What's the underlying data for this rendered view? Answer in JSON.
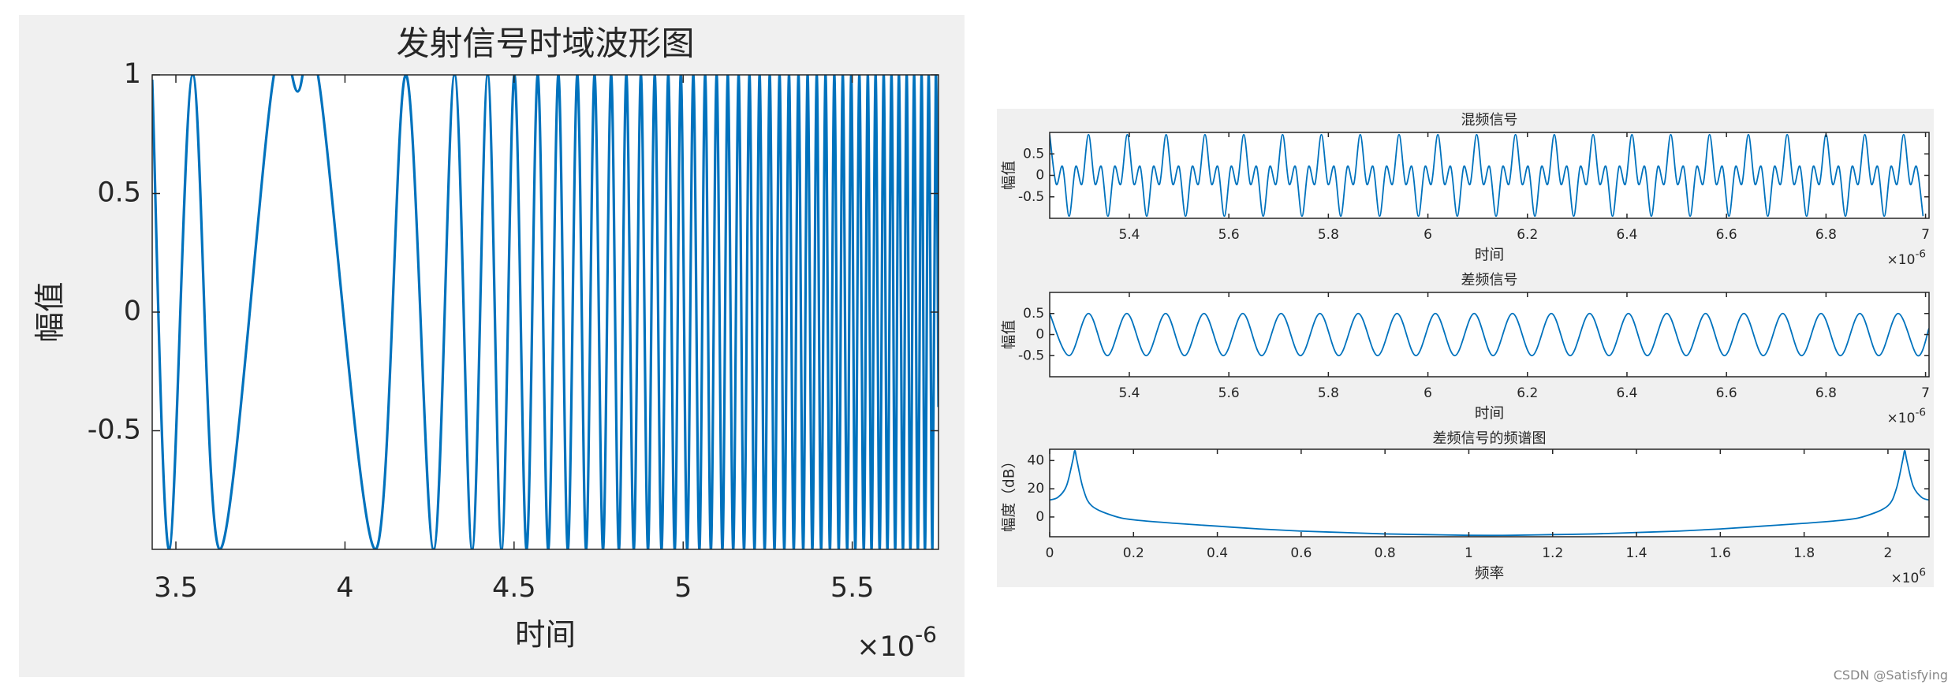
{
  "chart_data": [
    {
      "type": "line",
      "title": "发射信号时域波形图",
      "x_label": "时间",
      "y_label": "幅值",
      "x_multiplier": "×10",
      "x_multiplier_exponent": "-6",
      "color": "#0072bd",
      "xlim": [
        3.43,
        5.755
      ],
      "ylim": [
        -1,
        1
      ],
      "xticks": [
        3.5,
        4,
        4.5,
        5,
        5.5
      ],
      "yticks": [
        -0.5,
        0,
        0.5,
        1
      ],
      "x": [
        3.43,
        3.48,
        3.55,
        3.63,
        3.79,
        3.86,
        3.92,
        4.09,
        4.18,
        4.262,
        4.324,
        4.376,
        4.422,
        4.463,
        4.501,
        4.537,
        4.57,
        4.601,
        4.631,
        4.659,
        4.687,
        4.713,
        4.738,
        4.763,
        4.787,
        4.81,
        4.832,
        4.854,
        4.875,
        4.896,
        4.916,
        4.936,
        4.956,
        4.975,
        4.993,
        5.012,
        5.03,
        5.048,
        5.065,
        5.082,
        5.099,
        5.116,
        5.132,
        5.148,
        5.164,
        5.18,
        5.196,
        5.211,
        5.226,
        5.241,
        5.256,
        5.27,
        5.285,
        5.299,
        5.313,
        5.327,
        5.341,
        5.355,
        5.368,
        5.382,
        5.395,
        5.408,
        5.421,
        5.434,
        5.447,
        5.46,
        5.472,
        5.485,
        5.497,
        5.509,
        5.521,
        5.534,
        5.546,
        5.557,
        5.569,
        5.581,
        5.593,
        5.604,
        5.616,
        5.627,
        5.638,
        5.65,
        5.661,
        5.672,
        5.683,
        5.694,
        5.705,
        5.715,
        5.726,
        5.737,
        5.747,
        5.755
      ],
      "values": [
        0.98,
        -1,
        1,
        -1,
        1,
        0.93,
        1,
        -1,
        1,
        -1,
        1,
        -1,
        1,
        -1,
        1,
        -1,
        1,
        -1,
        1,
        -1,
        1,
        -1,
        1,
        -1,
        1,
        -1,
        1,
        -1,
        1,
        -1,
        1,
        -1,
        1,
        -1,
        1,
        -1,
        1,
        -1,
        1,
        -1,
        1,
        -1,
        1,
        -1,
        1,
        -1,
        1,
        -1,
        1,
        -1,
        1,
        -1,
        1,
        -1,
        1,
        -1,
        1,
        -1,
        1,
        -1,
        1,
        -1,
        1,
        -1,
        1,
        -1,
        1,
        -1,
        1,
        -1,
        1,
        -1,
        1,
        -1,
        1,
        -1,
        1,
        -1,
        1,
        -1,
        1,
        -1,
        1,
        -1,
        1,
        -1,
        1,
        -1,
        1,
        -1,
        1,
        -0.4
      ]
    },
    {
      "type": "line",
      "title": "混频信号",
      "x_label": "时间",
      "y_label": "幅值",
      "x_multiplier": "×10",
      "x_multiplier_exponent": "-6",
      "color": "#0072bd",
      "xlim": [
        5.24,
        7.007
      ],
      "ylim": [
        -1,
        1
      ],
      "xticks": [
        5.4,
        5.6,
        5.8,
        6,
        6.2,
        6.4,
        6.6,
        6.8,
        7
      ],
      "yticks": [
        -0.5,
        0,
        0.5
      ],
      "x": [
        5.24,
        5.253,
        5.266,
        5.279,
        5.292,
        5.305,
        5.318,
        5.331,
        5.344,
        5.357,
        5.37,
        5.383,
        5.396,
        5.409,
        5.422,
        5.435,
        5.448,
        5.461,
        5.474,
        5.487,
        5.5,
        5.513,
        5.526,
        5.539,
        5.552,
        5.565,
        5.578,
        5.591,
        5.604,
        5.617,
        5.63,
        5.643,
        5.656,
        5.669,
        5.682,
        5.695,
        5.708,
        5.721,
        5.734,
        5.747,
        5.76,
        5.773,
        5.786,
        5.799,
        5.812,
        5.825,
        5.838,
        5.851,
        5.864,
        5.877,
        5.89,
        5.903,
        5.916,
        5.929,
        5.942,
        5.955,
        5.968,
        5.981,
        5.994,
        6.007,
        6.02,
        6.033,
        6.046,
        6.059,
        6.072,
        6.085,
        6.098,
        6.111,
        6.124,
        6.137,
        6.15,
        6.163,
        6.176,
        6.189,
        6.202,
        6.215,
        6.228,
        6.241,
        6.254,
        6.267,
        6.28,
        6.293,
        6.306,
        6.319,
        6.332,
        6.345,
        6.358,
        6.371,
        6.384,
        6.397,
        6.41,
        6.423,
        6.436,
        6.449,
        6.462,
        6.475,
        6.488,
        6.501,
        6.514,
        6.527,
        6.54,
        6.553,
        6.566,
        6.579,
        6.592,
        6.605,
        6.618,
        6.631,
        6.644,
        6.657,
        6.67,
        6.683,
        6.696,
        6.709,
        6.722,
        6.735,
        6.748,
        6.761,
        6.774,
        6.787,
        6.8,
        6.813,
        6.826,
        6.839,
        6.852,
        6.865,
        6.878,
        6.891,
        6.904,
        6.917,
        6.93,
        6.943,
        6.956,
        6.969,
        6.982,
        6.995
      ],
      "values": [
        0.95,
        -0.2,
        0.2,
        -0.95,
        0.2,
        -0.2,
        0.95,
        -0.2,
        0.2,
        -0.95,
        0.2,
        -0.2,
        0.95,
        -0.2,
        0.2,
        -0.95,
        0.2,
        -0.2,
        0.95,
        -0.2,
        0.2,
        -0.95,
        0.2,
        -0.2,
        0.95,
        -0.2,
        0.2,
        -0.95,
        0.2,
        -0.2,
        0.95,
        -0.2,
        0.2,
        -0.95,
        0.2,
        -0.2,
        0.95,
        -0.2,
        0.2,
        -0.95,
        0.2,
        -0.2,
        0.95,
        -0.2,
        0.2,
        -0.95,
        0.2,
        -0.2,
        0.95,
        -0.2,
        0.2,
        -0.95,
        0.2,
        -0.2,
        0.95,
        -0.2,
        0.2,
        -0.95,
        0.2,
        -0.2,
        0.95,
        -0.2,
        0.2,
        -0.95,
        0.2,
        -0.2,
        0.95,
        -0.2,
        0.2,
        -0.95,
        0.2,
        -0.2,
        0.95,
        -0.2,
        0.2,
        -0.95,
        0.2,
        -0.2,
        0.95,
        -0.2,
        0.2,
        -0.95,
        0.2,
        -0.2,
        0.95,
        -0.2,
        0.2,
        -0.95,
        0.2,
        -0.2,
        0.95,
        -0.2,
        0.2,
        -0.95,
        0.2,
        -0.2,
        0.95,
        -0.2,
        0.2,
        -0.95,
        0.2,
        -0.2,
        0.95,
        -0.2,
        0.2,
        -0.95,
        0.2,
        -0.2,
        0.95,
        -0.2,
        0.2,
        -0.95,
        0.2,
        -0.2,
        0.95,
        -0.2,
        0.2,
        -0.95,
        0.2,
        -0.2,
        0.95,
        -0.2,
        0.2,
        -0.95,
        0.2,
        -0.2,
        0.95,
        -0.2,
        0.2,
        -0.95,
        0.2,
        -0.2,
        0.95,
        -0.2,
        0.2,
        -0.95
      ]
    },
    {
      "type": "line",
      "title": "差频信号",
      "x_label": "时间",
      "y_label": "幅值",
      "x_multiplier": "×10",
      "x_multiplier_exponent": "-6",
      "color": "#0072bd",
      "xlim": [
        5.24,
        7.007
      ],
      "ylim": [
        -1,
        1
      ],
      "xticks": [
        5.4,
        5.6,
        5.8,
        6,
        6.2,
        6.4,
        6.6,
        6.8,
        7
      ],
      "yticks": [
        -0.5,
        0,
        0.5
      ],
      "x": [
        5.24,
        5.279,
        5.318,
        5.356,
        5.395,
        5.434,
        5.473,
        5.511,
        5.55,
        5.589,
        5.628,
        5.666,
        5.705,
        5.744,
        5.783,
        5.821,
        5.86,
        5.899,
        5.938,
        5.976,
        6.015,
        6.054,
        6.093,
        6.131,
        6.17,
        6.209,
        6.248,
        6.286,
        6.325,
        6.364,
        6.403,
        6.441,
        6.48,
        6.519,
        6.558,
        6.596,
        6.635,
        6.674,
        6.713,
        6.751,
        6.79,
        6.829,
        6.868,
        6.906,
        6.945,
        6.984,
        7.007
      ],
      "values": [
        0.5,
        -0.5,
        0.5,
        -0.5,
        0.5,
        -0.5,
        0.5,
        -0.5,
        0.5,
        -0.5,
        0.5,
        -0.5,
        0.5,
        -0.5,
        0.5,
        -0.5,
        0.5,
        -0.5,
        0.5,
        -0.5,
        0.5,
        -0.5,
        0.5,
        -0.5,
        0.5,
        -0.5,
        0.5,
        -0.5,
        0.5,
        -0.5,
        0.5,
        -0.5,
        0.5,
        -0.5,
        0.5,
        -0.5,
        0.5,
        -0.5,
        0.5,
        -0.5,
        0.5,
        -0.5,
        0.5,
        -0.5,
        0.5,
        -0.5,
        0.15
      ]
    },
    {
      "type": "line",
      "title": "差频信号的频谱图",
      "x_label": "频率",
      "y_label": "幅度（dB）",
      "x_multiplier": "×10",
      "x_multiplier_exponent": "6",
      "color": "#0072bd",
      "xlim": [
        0,
        2.098
      ],
      "ylim": [
        -14,
        48
      ],
      "xticks": [
        0,
        0.2,
        0.4,
        0.6,
        0.8,
        1,
        1.2,
        1.4,
        1.6,
        1.8,
        2
      ],
      "yticks": [
        0,
        20,
        40
      ],
      "x": [
        0,
        0.02,
        0.04,
        0.055,
        0.06,
        0.065,
        0.08,
        0.1,
        0.15,
        0.2,
        0.3,
        0.4,
        0.5,
        0.6,
        0.7,
        0.8,
        0.9,
        1,
        1.1,
        1.2,
        1.3,
        1.4,
        1.5,
        1.6,
        1.7,
        1.8,
        1.9,
        1.95,
        2,
        2.02,
        2.035,
        2.04,
        2.045,
        2.06,
        2.08,
        2.098
      ],
      "values": [
        12,
        14,
        22,
        40,
        47,
        40,
        20,
        8,
        1,
        -2,
        -4.5,
        -6.5,
        -8.5,
        -10,
        -11,
        -12,
        -12.5,
        -13,
        -13,
        -12.5,
        -12,
        -11,
        -10,
        -8.5,
        -6.5,
        -4.5,
        -2,
        1,
        8,
        20,
        40,
        47,
        40,
        22,
        14,
        12
      ]
    }
  ],
  "watermark": "CSDN @Satisfying"
}
